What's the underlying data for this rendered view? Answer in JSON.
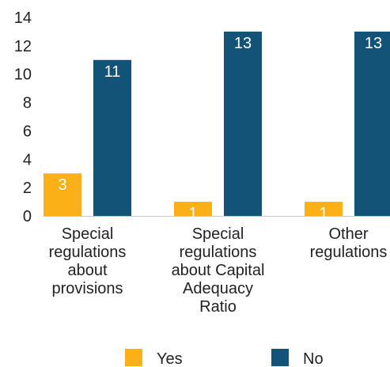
{
  "chart_data": {
    "type": "bar",
    "categories": [
      [
        "Special",
        "regulations",
        "about",
        "provisions"
      ],
      [
        "Special",
        "regulations",
        "about Capital",
        "Adequacy",
        "Ratio"
      ],
      [
        "Other",
        "regulations"
      ]
    ],
    "series": [
      {
        "name": "Yes",
        "color": "#fbb017",
        "values": [
          3,
          1,
          1
        ]
      },
      {
        "name": "No",
        "color": "#135377",
        "values": [
          11,
          13,
          13
        ]
      }
    ],
    "ylim": [
      0,
      14
    ],
    "yticks": [
      0,
      2,
      4,
      6,
      8,
      10,
      12,
      14
    ],
    "grid": false,
    "legend": "bottom-center",
    "data_labels": true
  }
}
